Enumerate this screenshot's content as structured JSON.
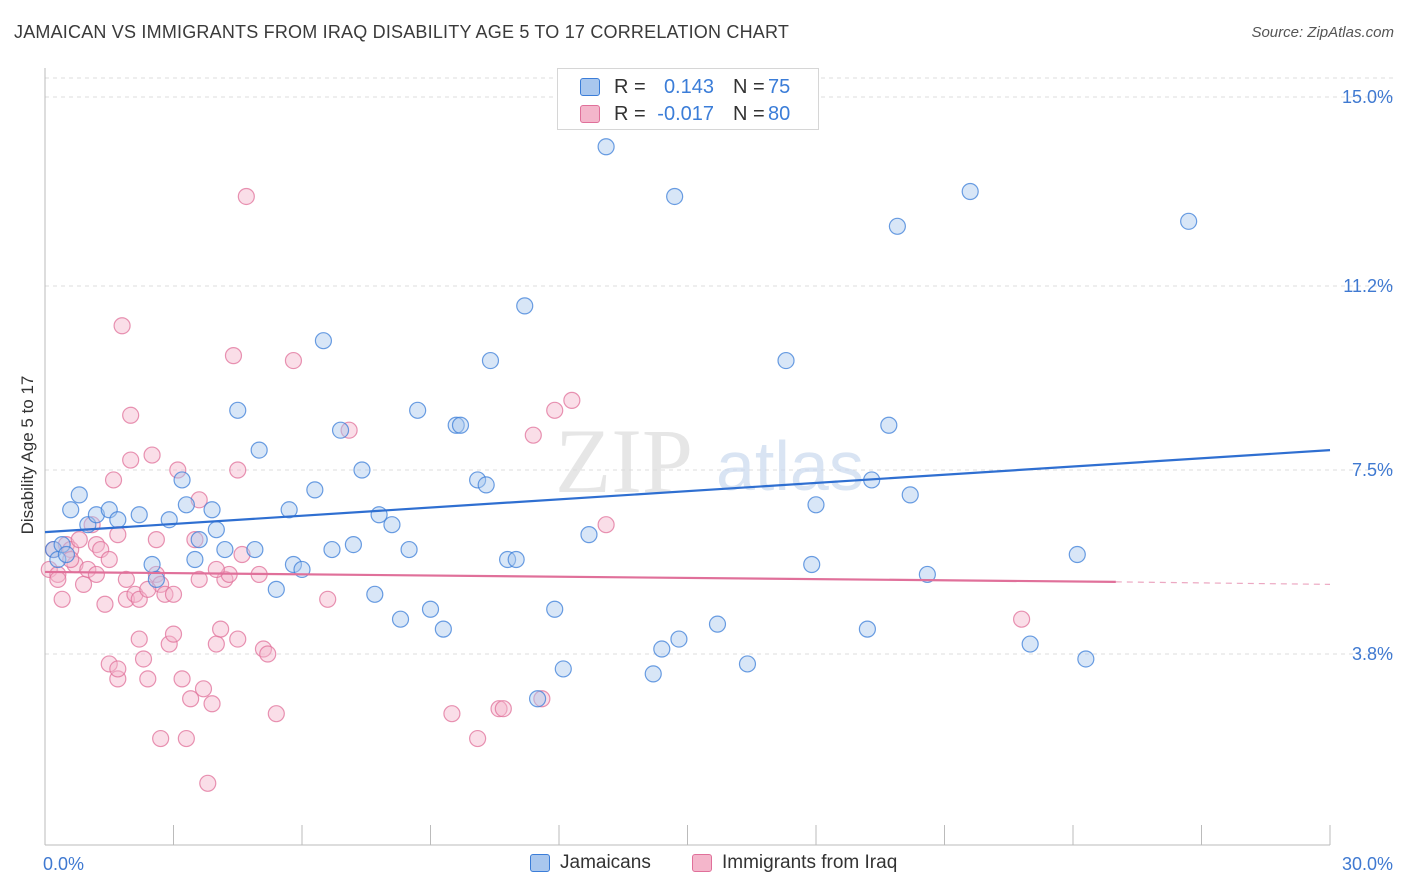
{
  "title": "JAMAICAN VS IMMIGRANTS FROM IRAQ DISABILITY AGE 5 TO 17 CORRELATION CHART",
  "source": "Source: ZipAtlas.com",
  "watermark": {
    "zip": "ZIP",
    "atlas": "atlas"
  },
  "colors": {
    "blue": "#3b7dd8",
    "blue_fill": "#a9c7ee",
    "blue_line": "#2f6fd1",
    "pink": "#e0709a",
    "pink_fill": "#f4b6cb",
    "pink_line": "#e0709a",
    "axis_text": "#3f79d1",
    "grid": "#dcdcdc"
  },
  "legend": {
    "jamaicans": {
      "r_label": "R =",
      "r_value": "0.143",
      "n_label": "N =",
      "n_value": "75"
    },
    "iraq": {
      "r_label": "R =",
      "r_value": "-0.017",
      "n_label": "N =",
      "n_value": "80"
    }
  },
  "bottom_legend": {
    "jamaicans": "Jamaicans",
    "iraq": "Immigrants from Iraq"
  },
  "chart_data": {
    "type": "scatter",
    "xlabel": "",
    "ylabel": "Disability Age 5 to 17",
    "xlim": [
      0,
      30
    ],
    "ylim": [
      0,
      15.5
    ],
    "x_tick_labels": [
      {
        "value": 0,
        "label": "0.0%"
      },
      {
        "value": 30,
        "label": "30.0%"
      }
    ],
    "y_tick_labels": [
      {
        "value": 3.8,
        "label": "3.8%"
      },
      {
        "value": 7.5,
        "label": "7.5%"
      },
      {
        "value": 11.2,
        "label": "11.2%"
      },
      {
        "value": 15.0,
        "label": "15.0%"
      }
    ],
    "x_minor_ticks": [
      3,
      6,
      9,
      12,
      15,
      18,
      21,
      24,
      27
    ],
    "series": [
      {
        "name": "Jamaicans",
        "color": "blue",
        "trend": {
          "x": [
            0,
            30
          ],
          "y": [
            6.25,
            7.9
          ]
        },
        "points": [
          [
            0.2,
            5.9
          ],
          [
            0.3,
            5.7
          ],
          [
            0.4,
            6.0
          ],
          [
            0.6,
            6.7
          ],
          [
            0.8,
            7.0
          ],
          [
            1.0,
            6.4
          ],
          [
            1.2,
            6.6
          ],
          [
            1.5,
            6.7
          ],
          [
            1.7,
            6.5
          ],
          [
            2.2,
            6.6
          ],
          [
            2.5,
            5.6
          ],
          [
            2.6,
            5.3
          ],
          [
            2.9,
            6.5
          ],
          [
            3.2,
            7.3
          ],
          [
            3.3,
            6.8
          ],
          [
            3.5,
            5.7
          ],
          [
            3.6,
            6.1
          ],
          [
            3.9,
            6.7
          ],
          [
            4.0,
            6.3
          ],
          [
            4.2,
            5.9
          ],
          [
            4.5,
            8.7
          ],
          [
            4.9,
            5.9
          ],
          [
            5.0,
            7.9
          ],
          [
            5.4,
            5.1
          ],
          [
            5.7,
            6.7
          ],
          [
            5.8,
            5.6
          ],
          [
            6.0,
            5.5
          ],
          [
            6.3,
            7.1
          ],
          [
            6.5,
            10.1
          ],
          [
            6.7,
            5.9
          ],
          [
            6.9,
            8.3
          ],
          [
            7.2,
            6.0
          ],
          [
            7.4,
            7.5
          ],
          [
            7.7,
            5.0
          ],
          [
            7.8,
            6.6
          ],
          [
            8.1,
            6.4
          ],
          [
            8.3,
            4.5
          ],
          [
            8.5,
            5.9
          ],
          [
            8.7,
            8.7
          ],
          [
            9.0,
            4.7
          ],
          [
            9.3,
            4.3
          ],
          [
            9.6,
            8.4
          ],
          [
            9.7,
            8.4
          ],
          [
            10.1,
            7.3
          ],
          [
            10.3,
            7.2
          ],
          [
            10.4,
            9.7
          ],
          [
            10.8,
            5.7
          ],
          [
            11.0,
            5.7
          ],
          [
            11.2,
            10.8
          ],
          [
            11.5,
            2.9
          ],
          [
            11.9,
            4.7
          ],
          [
            12.1,
            3.5
          ],
          [
            12.7,
            6.2
          ],
          [
            13.1,
            14.0
          ],
          [
            14.2,
            3.4
          ],
          [
            14.4,
            3.9
          ],
          [
            14.7,
            13.0
          ],
          [
            14.8,
            4.1
          ],
          [
            15.7,
            4.4
          ],
          [
            16.4,
            3.6
          ],
          [
            17.3,
            9.7
          ],
          [
            17.9,
            5.6
          ],
          [
            18.0,
            6.8
          ],
          [
            19.3,
            7.3
          ],
          [
            19.2,
            4.3
          ],
          [
            19.7,
            8.4
          ],
          [
            19.9,
            12.4
          ],
          [
            20.2,
            7.0
          ],
          [
            20.6,
            5.4
          ],
          [
            21.6,
            13.1
          ],
          [
            23.0,
            4.0
          ],
          [
            24.1,
            5.8
          ],
          [
            24.3,
            3.7
          ],
          [
            26.7,
            12.5
          ],
          [
            0.5,
            5.8
          ]
        ]
      },
      {
        "name": "Immigrants from Iraq",
        "color": "pink",
        "trend": {
          "x": [
            0,
            25
          ],
          "y": [
            5.45,
            5.25
          ]
        },
        "trend_dashed": {
          "x": [
            25,
            30
          ],
          "y": [
            5.25,
            5.2
          ]
        },
        "points": [
          [
            0.1,
            5.5
          ],
          [
            0.2,
            5.9
          ],
          [
            0.3,
            5.4
          ],
          [
            0.4,
            4.9
          ],
          [
            0.5,
            6.0
          ],
          [
            0.6,
            5.9
          ],
          [
            0.7,
            5.6
          ],
          [
            0.8,
            6.1
          ],
          [
            0.9,
            5.2
          ],
          [
            1.0,
            5.5
          ],
          [
            1.1,
            6.4
          ],
          [
            1.2,
            6.0
          ],
          [
            1.3,
            5.9
          ],
          [
            1.4,
            4.8
          ],
          [
            1.5,
            5.7
          ],
          [
            1.5,
            3.6
          ],
          [
            1.6,
            7.3
          ],
          [
            1.7,
            3.3
          ],
          [
            1.7,
            3.5
          ],
          [
            1.8,
            10.4
          ],
          [
            1.9,
            5.3
          ],
          [
            1.9,
            4.9
          ],
          [
            2.0,
            8.6
          ],
          [
            2.0,
            7.7
          ],
          [
            2.1,
            5.0
          ],
          [
            2.2,
            4.9
          ],
          [
            2.2,
            4.1
          ],
          [
            2.3,
            3.7
          ],
          [
            2.4,
            3.3
          ],
          [
            2.5,
            7.8
          ],
          [
            2.6,
            5.4
          ],
          [
            2.6,
            6.1
          ],
          [
            2.7,
            5.2
          ],
          [
            2.7,
            2.1
          ],
          [
            2.8,
            5.0
          ],
          [
            2.9,
            4.0
          ],
          [
            3.0,
            5.0
          ],
          [
            3.1,
            7.5
          ],
          [
            3.2,
            3.3
          ],
          [
            3.3,
            2.1
          ],
          [
            3.4,
            2.9
          ],
          [
            3.5,
            6.1
          ],
          [
            3.6,
            5.3
          ],
          [
            3.6,
            6.9
          ],
          [
            3.7,
            3.1
          ],
          [
            3.8,
            1.2
          ],
          [
            3.9,
            2.8
          ],
          [
            4.0,
            4.0
          ],
          [
            4.1,
            4.3
          ],
          [
            4.2,
            5.3
          ],
          [
            4.3,
            5.4
          ],
          [
            4.4,
            9.8
          ],
          [
            4.5,
            4.1
          ],
          [
            4.5,
            7.5
          ],
          [
            4.6,
            5.8
          ],
          [
            4.7,
            13.0
          ],
          [
            5.0,
            5.4
          ],
          [
            5.1,
            3.9
          ],
          [
            5.2,
            3.8
          ],
          [
            5.4,
            2.6
          ],
          [
            5.8,
            9.7
          ],
          [
            6.6,
            4.9
          ],
          [
            7.1,
            8.3
          ],
          [
            9.5,
            2.6
          ],
          [
            10.1,
            2.1
          ],
          [
            10.6,
            2.7
          ],
          [
            10.7,
            2.7
          ],
          [
            11.4,
            8.2
          ],
          [
            11.6,
            2.9
          ],
          [
            11.9,
            8.7
          ],
          [
            12.3,
            8.9
          ],
          [
            13.1,
            6.4
          ],
          [
            22.8,
            4.5
          ],
          [
            0.3,
            5.3
          ],
          [
            0.6,
            5.7
          ],
          [
            1.2,
            5.4
          ],
          [
            1.7,
            6.2
          ],
          [
            2.4,
            5.1
          ],
          [
            3.0,
            4.2
          ],
          [
            4.0,
            5.5
          ]
        ]
      }
    ]
  }
}
